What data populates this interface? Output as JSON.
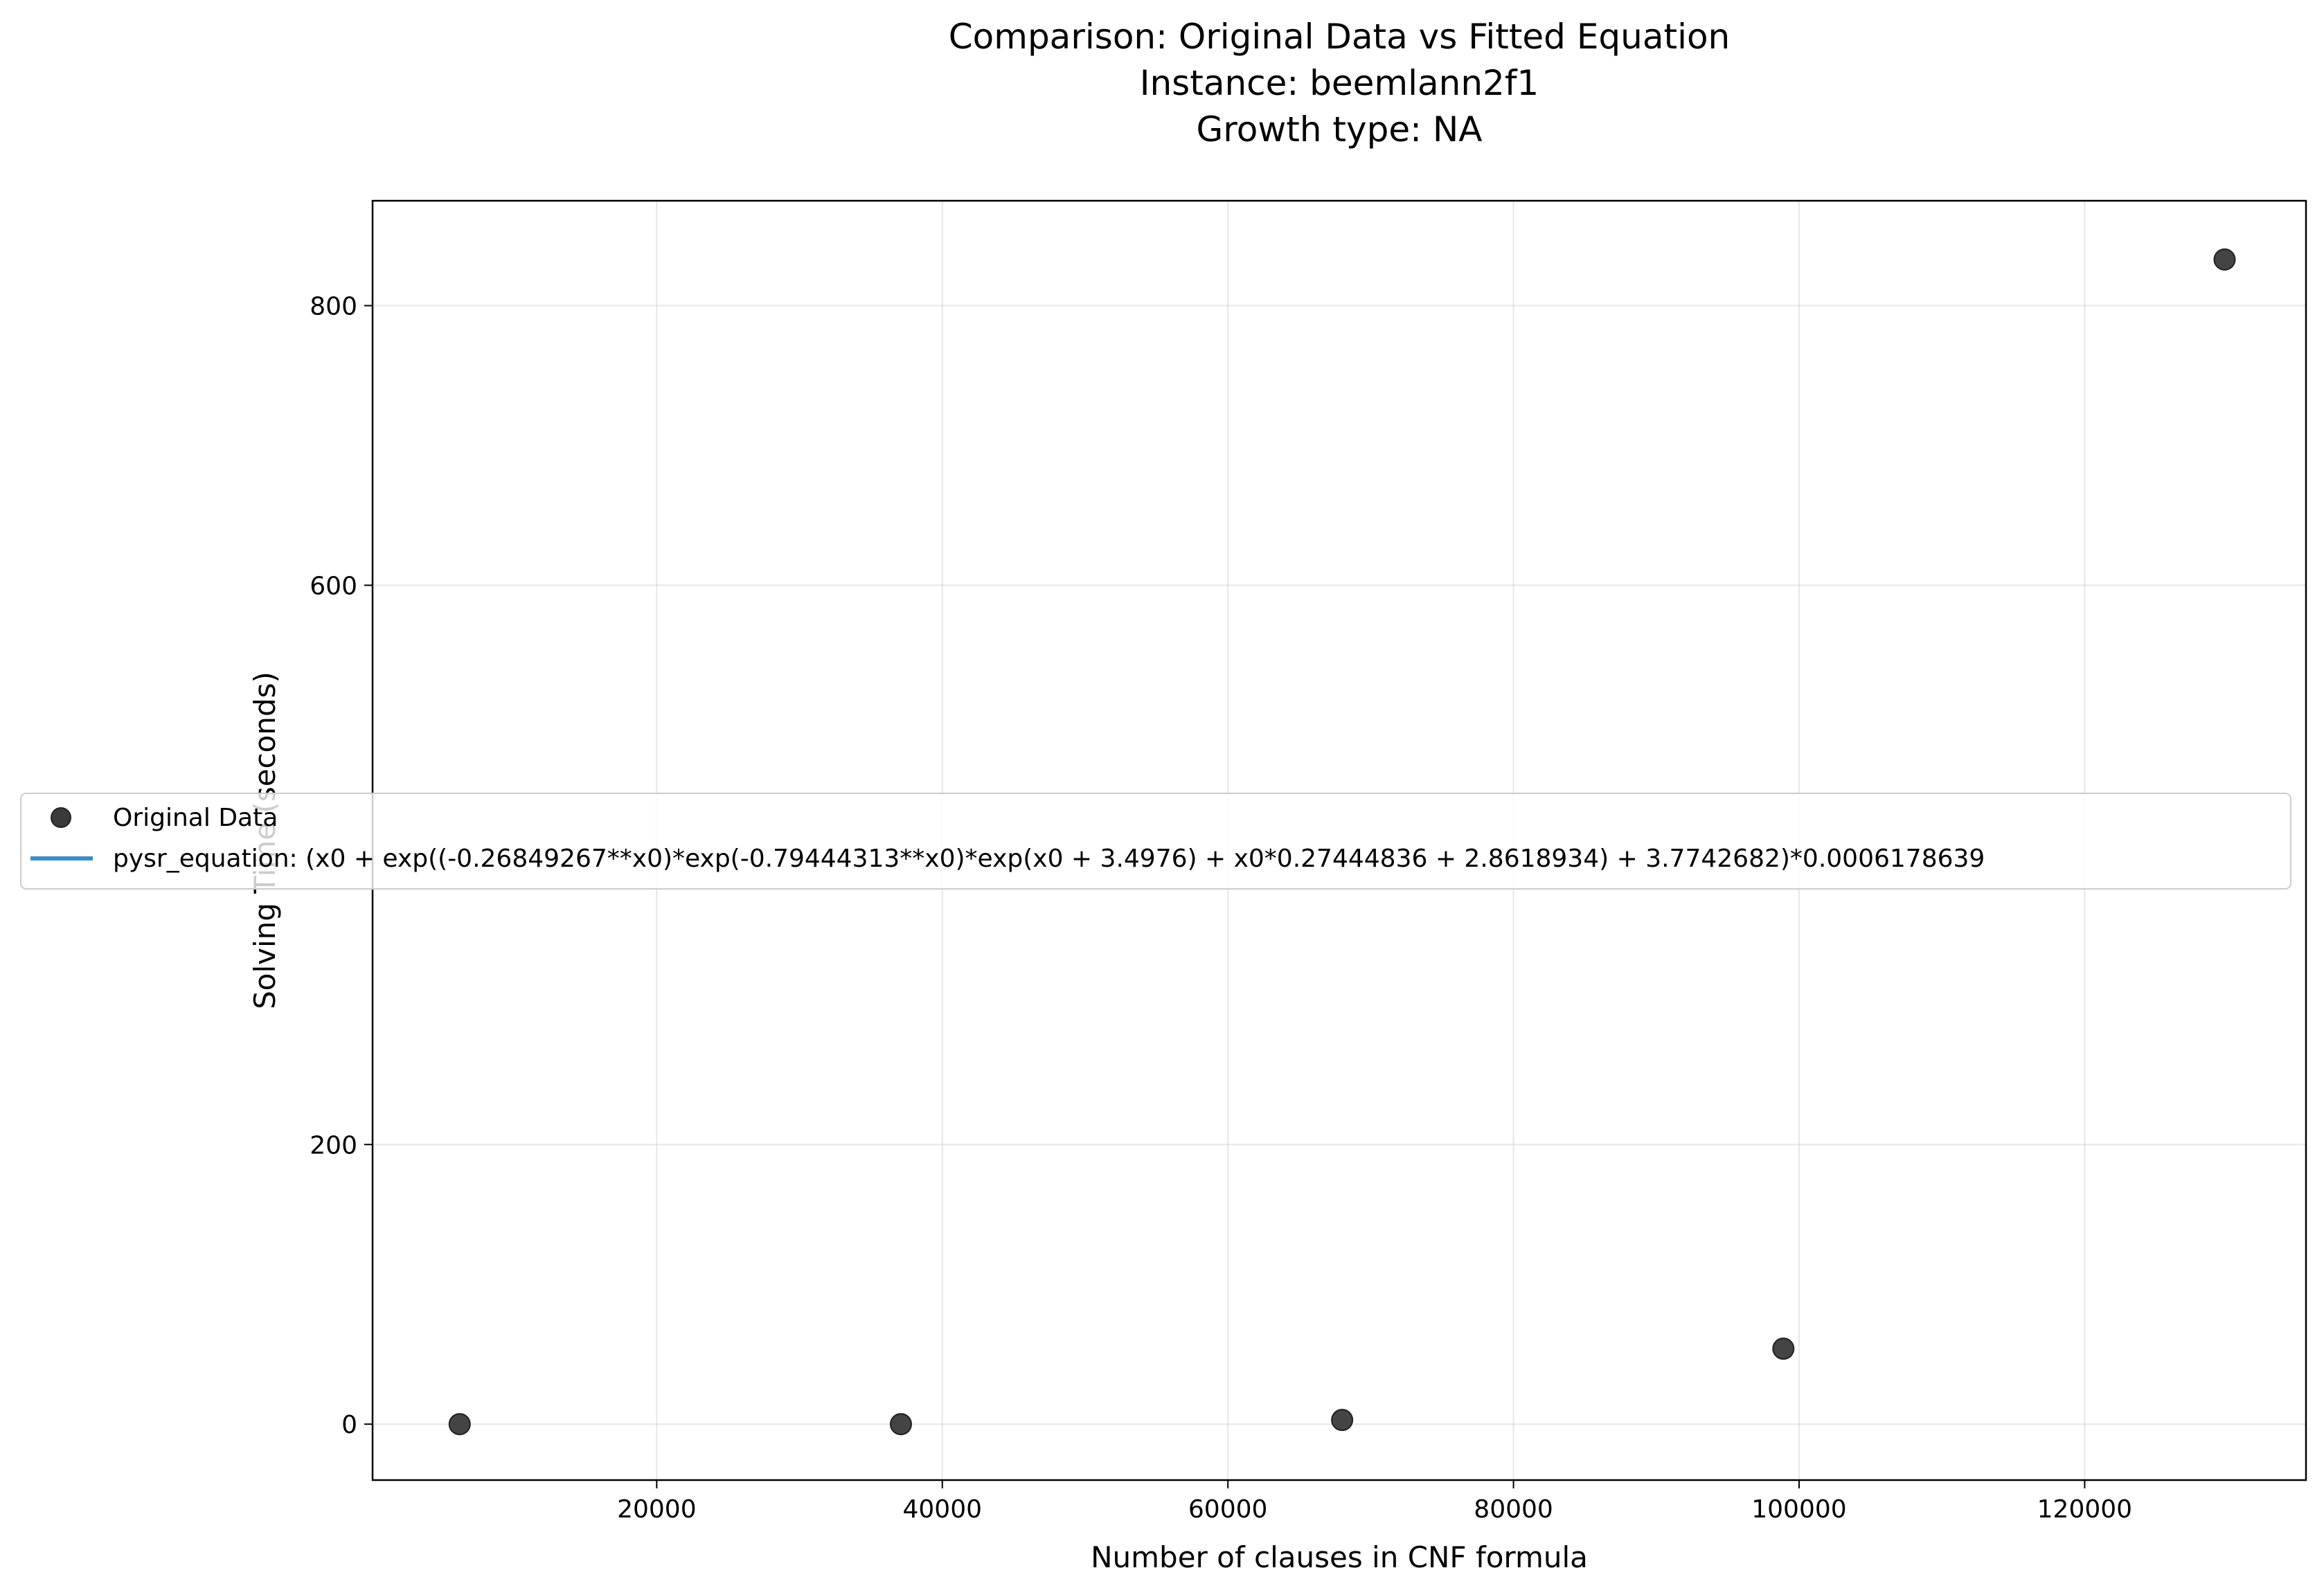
{
  "chart_data": {
    "type": "scatter",
    "title_lines": [
      "Comparison: Original Data vs Fitted Equation",
      "Instance: beemlann2f1",
      "Growth type: NA"
    ],
    "xlabel": "Number of clauses in CNF formula",
    "ylabel": "Solving Time (seconds)",
    "xlim": [
      100,
      135500
    ],
    "ylim": [
      -40,
      875
    ],
    "xticks": [
      20000,
      40000,
      60000,
      80000,
      100000,
      120000
    ],
    "yticks": [
      0,
      200,
      600,
      800
    ],
    "grid": true,
    "legend_position": "center-left",
    "series": [
      {
        "name": "Original Data",
        "kind": "scatter",
        "color": "#3a3a3a",
        "points": [
          {
            "x": 6200,
            "y": 0
          },
          {
            "x": 37100,
            "y": 0
          },
          {
            "x": 68000,
            "y": 3
          },
          {
            "x": 98900,
            "y": 54
          },
          {
            "x": 129800,
            "y": 833
          }
        ]
      },
      {
        "name": "pysr_equation: (x0 + exp((-0.26849267**x0)*exp(-0.79444313**x0)*exp(x0 + 3.4976) + x0*0.27444836 + 2.8618934) + 3.7742682)*0.0006178639",
        "kind": "line",
        "color": "#3e8ac6",
        "points": []
      }
    ]
  }
}
